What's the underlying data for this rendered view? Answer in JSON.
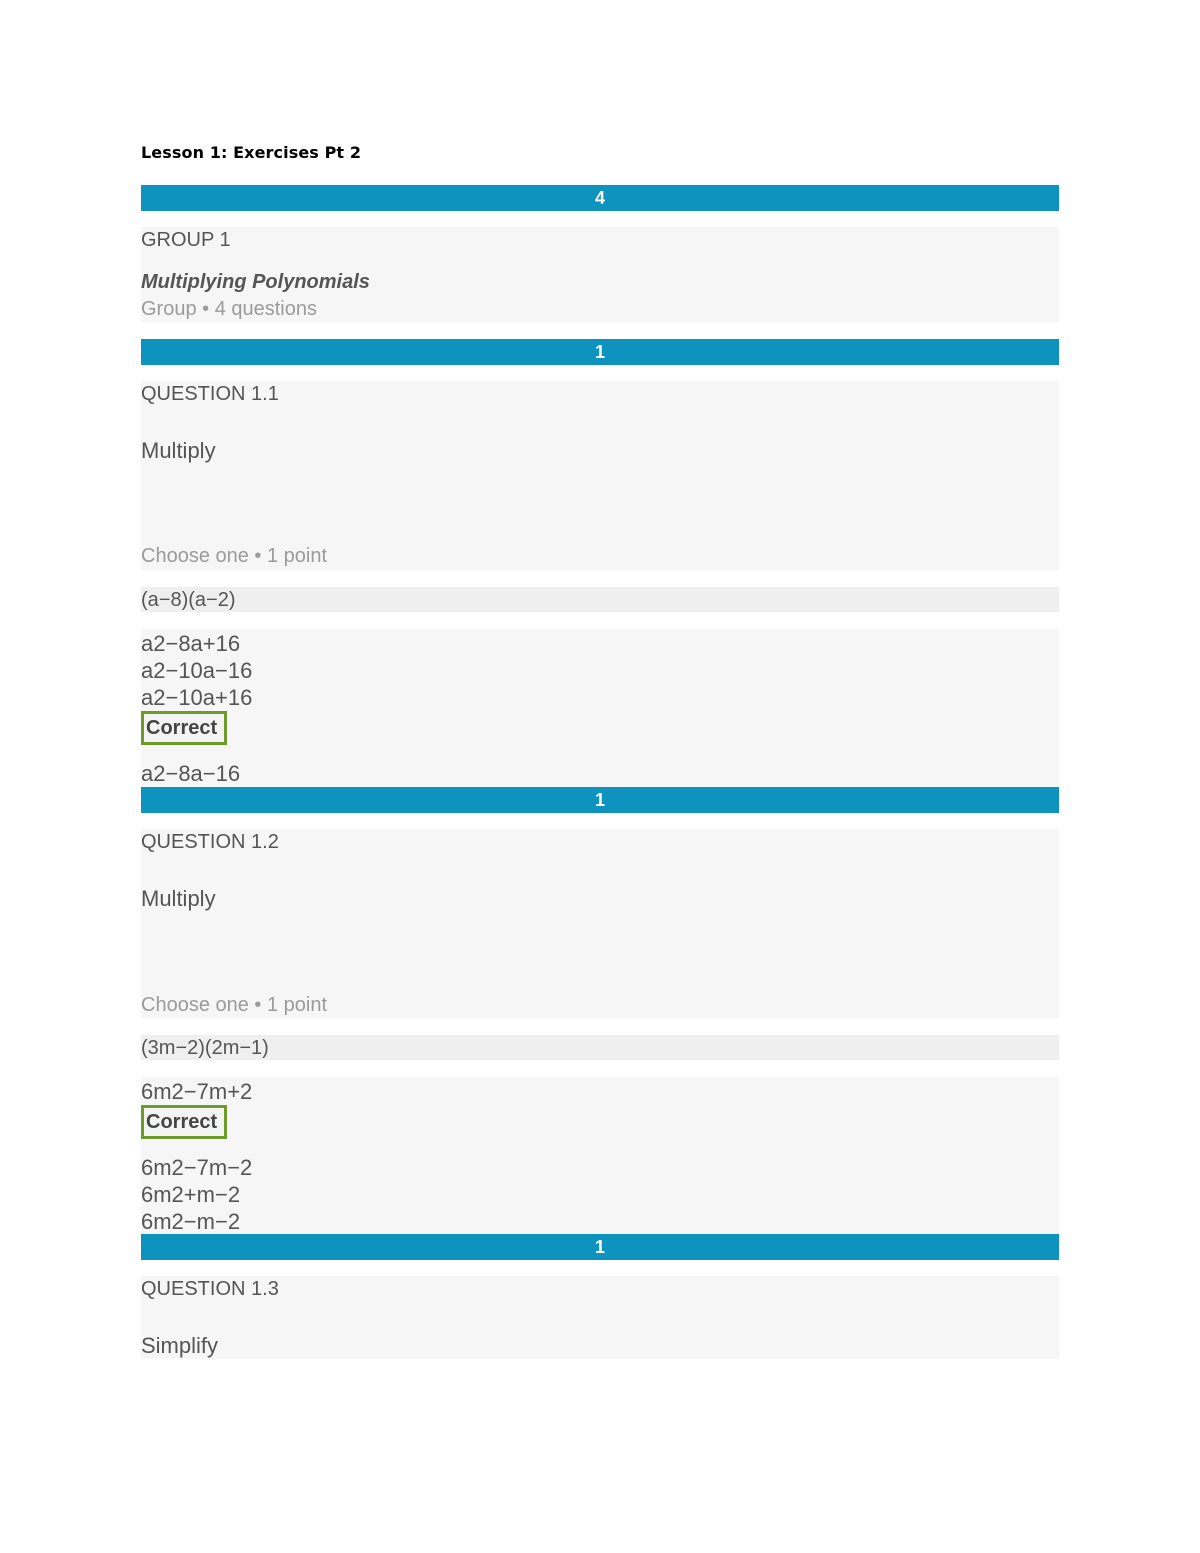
{
  "document": {
    "title": "Lesson 1: Exercises Pt 2"
  },
  "group": {
    "points": "4",
    "label": "GROUP 1",
    "name": "Multiplying Polynomials",
    "meta": "Group • 4 questions"
  },
  "questions": [
    {
      "points": "1",
      "label": "QUESTION 1.1",
      "prompt": "Multiply",
      "meta": "Choose one • 1 point",
      "expression": "(a−8)(a−2)",
      "options": [
        "a2−8a+16",
        "a2−10a−16",
        "a2−10a+16",
        "a2−8a−16"
      ],
      "correct_badge": "Correct"
    },
    {
      "points": "1",
      "label": "QUESTION 1.2",
      "prompt": "Multiply",
      "meta": "Choose one • 1 point",
      "expression": "(3m−2)(2m−1)",
      "options": [
        "6m2−7m+2",
        "6m2−7m−2",
        "6m2+m−2",
        "6m2−m−2"
      ],
      "correct_badge": "Correct"
    },
    {
      "points": "1",
      "label": "QUESTION 1.3",
      "prompt": "Simplify"
    }
  ]
}
